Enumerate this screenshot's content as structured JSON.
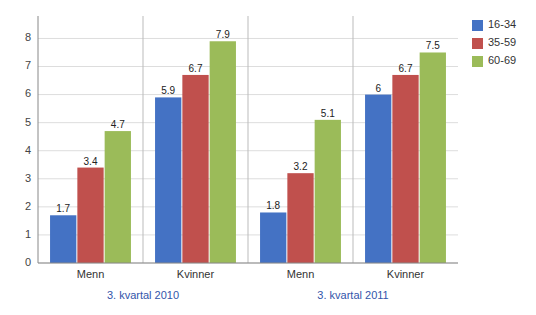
{
  "chart_data": {
    "type": "bar",
    "categories": [
      "Menn",
      "Kvinner",
      "Menn",
      "Kvinner"
    ],
    "annotations": [
      "3. kvartal 2010",
      "3. kvartal 2011"
    ],
    "series": [
      {
        "name": "16-34",
        "color": "#4472C4",
        "values": [
          1.7,
          5.9,
          1.8,
          6.0
        ]
      },
      {
        "name": "35-59",
        "color": "#C0504D",
        "values": [
          3.4,
          6.7,
          3.2,
          6.7
        ]
      },
      {
        "name": "60-69",
        "color": "#9BBB59",
        "values": [
          4.7,
          7.9,
          5.1,
          7.5
        ]
      }
    ],
    "ylim": [
      0,
      8.8
    ],
    "yticks": [
      0,
      1,
      2,
      3,
      4,
      5,
      6,
      7,
      8
    ],
    "grid": true,
    "data_labels": true,
    "legend": "upper right"
  }
}
